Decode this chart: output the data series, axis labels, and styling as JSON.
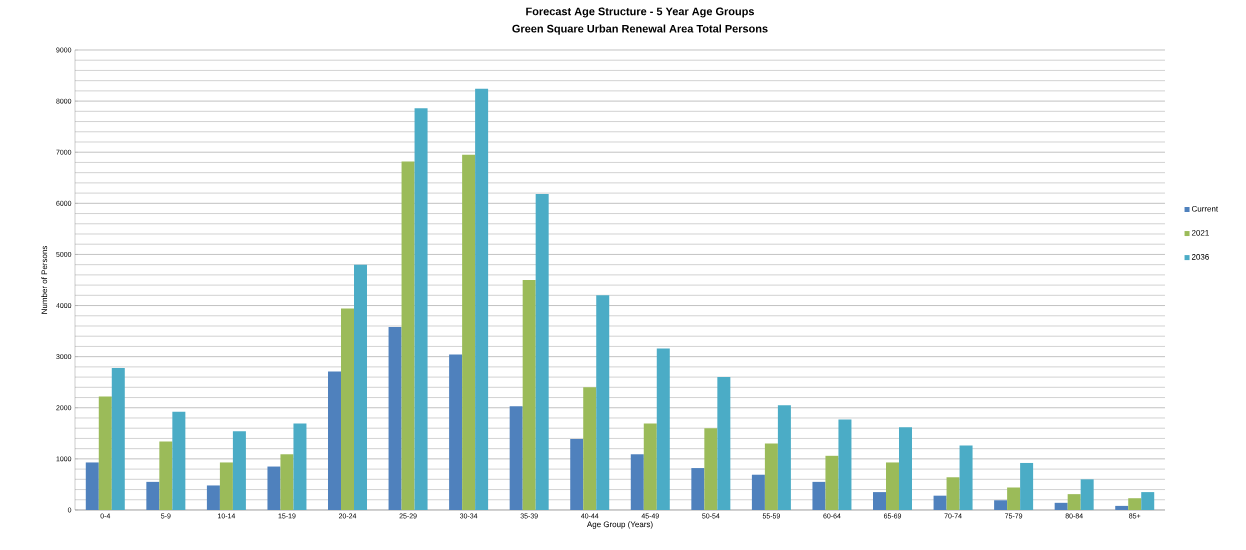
{
  "chart_data": {
    "type": "bar",
    "title": "Forecast Age Structure - 5 Year Age Groups",
    "subtitle": "Green Square Urban Renewal Area Total Persons",
    "xlabel": "Age Group (Years)",
    "ylabel": "Number of Persons",
    "categories": [
      "0-4",
      "5-9",
      "10-14",
      "15-19",
      "20-24",
      "25-29",
      "30-34",
      "35-39",
      "40-44",
      "45-49",
      "50-54",
      "55-59",
      "60-64",
      "65-69",
      "70-74",
      "75-79",
      "80-84",
      "85+"
    ],
    "series": [
      {
        "name": "Current",
        "color": "#4f81bd",
        "values": [
          930,
          550,
          480,
          850,
          2710,
          3580,
          3040,
          2030,
          1390,
          1090,
          820,
          690,
          550,
          350,
          280,
          190,
          140,
          80
        ]
      },
      {
        "name": "2021",
        "color": "#9bbb59",
        "values": [
          2220,
          1340,
          930,
          1090,
          3940,
          6820,
          6950,
          4500,
          2400,
          1690,
          1600,
          1300,
          1060,
          930,
          640,
          440,
          310,
          230
        ]
      },
      {
        "name": "2036",
        "color": "#4bacc6",
        "values": [
          2780,
          1920,
          1540,
          1690,
          4800,
          7860,
          8240,
          6180,
          4200,
          3160,
          2600,
          2050,
          1770,
          1620,
          1260,
          920,
          600,
          350
        ]
      }
    ],
    "ylim": [
      0,
      9000
    ],
    "yticks": [
      0,
      1000,
      2000,
      3000,
      4000,
      5000,
      6000,
      7000,
      8000,
      9000
    ],
    "grid": "y",
    "legend": "right"
  }
}
